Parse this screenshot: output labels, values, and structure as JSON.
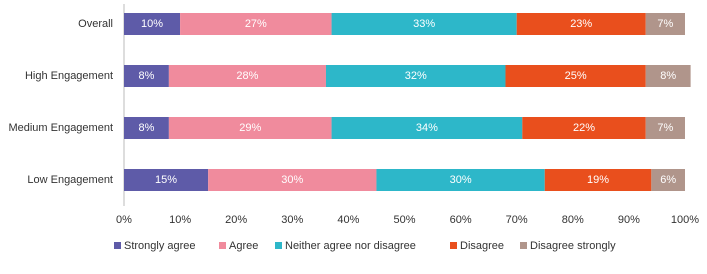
{
  "chart_data": {
    "type": "stacked-bar-horizontal",
    "categories": [
      "Overall",
      "High Engagement",
      "Medium Engagement",
      "Low Engagement"
    ],
    "series": [
      {
        "name": "Strongly agree",
        "color": "#5e5ba8",
        "values": [
          10,
          8,
          8,
          15
        ],
        "value_labels": [
          "10%",
          "8%",
          "8%",
          "15%"
        ]
      },
      {
        "name": "Agree",
        "color": "#f08b9d",
        "values": [
          27,
          28,
          29,
          30
        ],
        "value_labels": [
          "27%",
          "28%",
          "29%",
          "30%"
        ]
      },
      {
        "name": "Neither agree nor disagree",
        "color": "#2db7c9",
        "values": [
          33,
          32,
          34,
          30
        ],
        "value_labels": [
          "33%",
          "32%",
          "34%",
          "30%"
        ]
      },
      {
        "name": "Disagree",
        "color": "#e94f1d",
        "values": [
          23,
          25,
          22,
          19
        ],
        "value_labels": [
          "23%",
          "25%",
          "22%",
          "19%"
        ]
      },
      {
        "name": "Disagree strongly",
        "color": "#b0958b",
        "values": [
          7,
          8,
          7,
          6
        ],
        "value_labels": [
          "7%",
          "8%",
          "7%",
          "6%"
        ]
      }
    ],
    "xlim": [
      0,
      100
    ],
    "xticks": [
      {
        "value": 0,
        "label": "0%"
      },
      {
        "value": 10,
        "label": "10%"
      },
      {
        "value": 20,
        "label": "20%"
      },
      {
        "value": 30,
        "label": "30%"
      },
      {
        "value": 40,
        "label": "40%"
      },
      {
        "value": 50,
        "label": "50%"
      },
      {
        "value": 60,
        "label": "60%"
      },
      {
        "value": 70,
        "label": "70%"
      },
      {
        "value": 80,
        "label": "80%"
      },
      {
        "value": 90,
        "label": "90%"
      },
      {
        "value": 100,
        "label": "100%"
      }
    ],
    "legend": "bottom"
  }
}
